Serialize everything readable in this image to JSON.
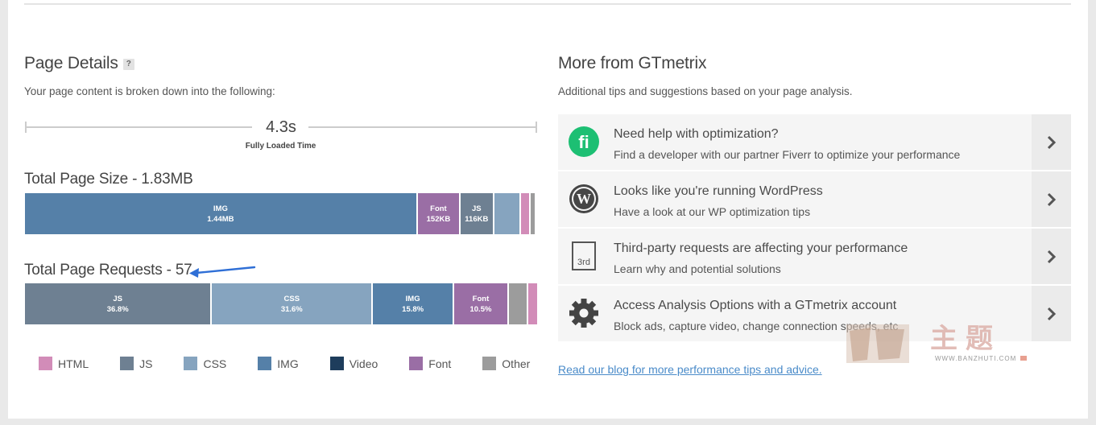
{
  "page_details": {
    "title": "Page Details",
    "help": "?",
    "description": "Your page content is broken down into the following:",
    "fully_loaded_value": "4.3s",
    "fully_loaded_label": "Fully Loaded Time",
    "size_title": "Total Page Size - 1.83MB",
    "size_segments": [
      {
        "name": "IMG",
        "value": "1.44MB",
        "color": "#5580a8",
        "fraction": 0.776
      },
      {
        "name": "Font",
        "value": "152KB",
        "color": "#9a6ea5",
        "fraction": 0.082
      },
      {
        "name": "JS",
        "value": "116KB",
        "color": "#6e8092",
        "fraction": 0.063
      },
      {
        "name": "",
        "value": "",
        "color": "#86a4bf",
        "fraction": 0.051
      },
      {
        "name": "",
        "value": "",
        "color": "#d28cb8",
        "fraction": 0.015
      },
      {
        "name": "",
        "value": "",
        "color": "#9c9c9c",
        "fraction": 0.008
      }
    ],
    "requests_title": "Total Page Requests - 57",
    "request_segments": [
      {
        "name": "JS",
        "value": "36.8%",
        "color": "#6e8092",
        "fraction": 0.368
      },
      {
        "name": "CSS",
        "value": "31.6%",
        "color": "#86a4bf",
        "fraction": 0.316
      },
      {
        "name": "IMG",
        "value": "15.8%",
        "color": "#5580a8",
        "fraction": 0.158
      },
      {
        "name": "Font",
        "value": "10.5%",
        "color": "#9a6ea5",
        "fraction": 0.105
      },
      {
        "name": "",
        "value": "",
        "color": "#9c9c9c",
        "fraction": 0.035
      },
      {
        "name": "",
        "value": "",
        "color": "#d28cb8",
        "fraction": 0.018
      }
    ],
    "legend": [
      {
        "label": "HTML",
        "color": "#d28cb8"
      },
      {
        "label": "JS",
        "color": "#6e8092"
      },
      {
        "label": "CSS",
        "color": "#86a4bf"
      },
      {
        "label": "IMG",
        "color": "#5580a8"
      },
      {
        "label": "Video",
        "color": "#1e3d5c"
      },
      {
        "label": "Font",
        "color": "#9a6ea5"
      },
      {
        "label": "Other",
        "color": "#9c9c9c"
      }
    ]
  },
  "more": {
    "title": "More from GTmetrix",
    "description": "Additional tips and suggestions based on your page analysis.",
    "tips": [
      {
        "title": "Need help with optimization?",
        "desc": "Find a developer with our partner Fiverr to optimize your performance",
        "icon": "fiverr-icon"
      },
      {
        "title": "Looks like you're running WordPress",
        "desc": "Have a look at our WP optimization tips",
        "icon": "wordpress-icon"
      },
      {
        "title": "Third-party requests are affecting your performance",
        "desc": "Learn why and potential solutions",
        "icon": "third-party-icon",
        "icon_text": "3rd"
      },
      {
        "title": "Access Analysis Options with a GTmetrix account",
        "desc": "Block ads, capture video, change connection speeds, etc",
        "icon": "gear-icon"
      }
    ],
    "blog_link": "Read our blog for more performance tips and advice."
  },
  "watermark": {
    "cn": "主题",
    "url": "WWW.BANZHUTI.COM"
  }
}
